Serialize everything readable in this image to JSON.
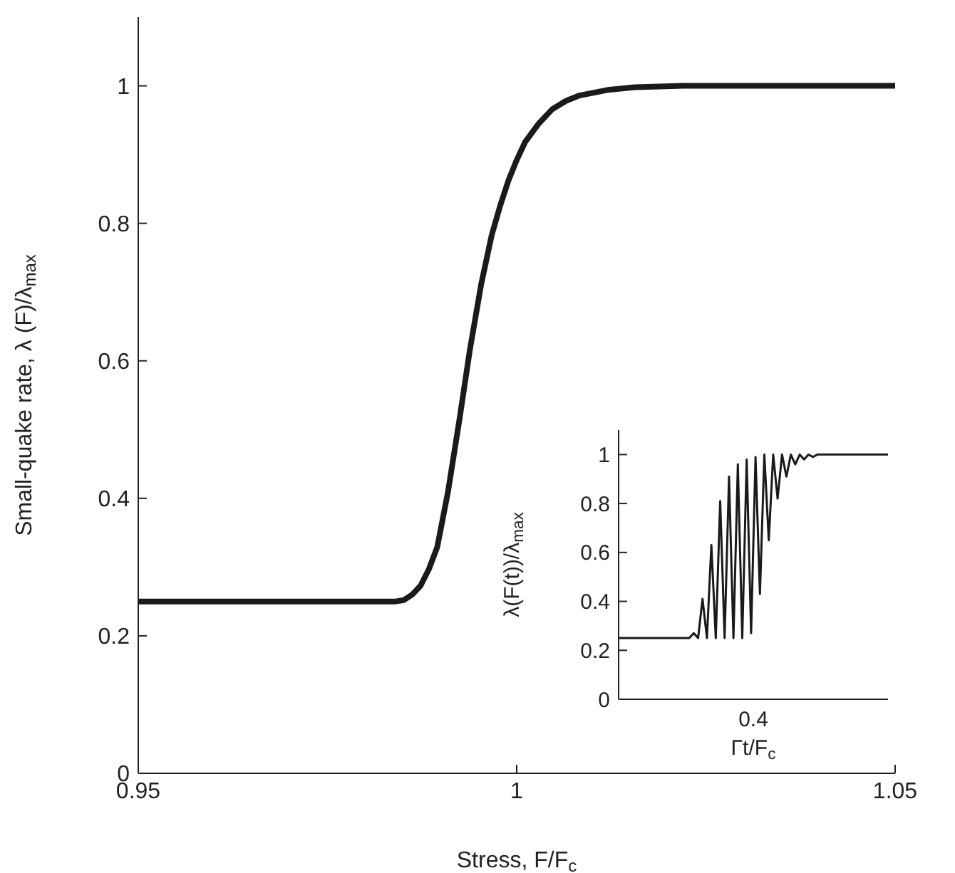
{
  "chart_data": [
    {
      "type": "line",
      "xlabel": "Stress, F/F$_{c}$",
      "ylabel": "Small-quake rate, λ (F)/λ$_{max}$",
      "xlim": [
        0.95,
        1.05
      ],
      "xticks": [
        0.95,
        1,
        1.05
      ],
      "ylim": [
        0,
        1.1
      ],
      "yticks": [
        0,
        0.2,
        0.4,
        0.6,
        0.8,
        1
      ],
      "marker": "none",
      "line_style": "solid",
      "series": [
        {
          "color": "#1a1a1a",
          "x": [
            0.95,
            0.97,
            0.984,
            0.9851,
            0.9862,
            0.9873,
            0.9884,
            0.9895,
            0.9909,
            0.9924,
            0.9938,
            0.9953,
            0.9967,
            0.9978,
            0.9989,
            1.0,
            1.0011,
            1.0029,
            1.0047,
            1.0065,
            1.0083,
            1.012,
            1.0156,
            1.022,
            1.03,
            1.05
          ],
          "values": [
            0.25,
            0.25,
            0.25,
            0.252,
            0.26,
            0.273,
            0.297,
            0.329,
            0.408,
            0.512,
            0.615,
            0.711,
            0.783,
            0.825,
            0.862,
            0.892,
            0.918,
            0.945,
            0.966,
            0.978,
            0.986,
            0.994,
            0.998,
            1,
            1,
            1
          ]
        }
      ]
    },
    {
      "type": "line",
      "xlabel": "Γt/F$_{c}$",
      "ylabel": "λ(F(t))/λ$_{max}$",
      "ylim": [
        0,
        1.1
      ],
      "yticks": [
        0,
        0.2,
        0.4,
        0.6,
        0.8,
        1
      ],
      "marker": "none",
      "line_style": "solid",
      "annotations": [
        "0.4"
      ],
      "categories": [
        null,
        null,
        null,
        null,
        null,
        null,
        null,
        null,
        null,
        null,
        null,
        null,
        null,
        null,
        null,
        null,
        null,
        null,
        null,
        null,
        null,
        null,
        null,
        null,
        null,
        null,
        null,
        null,
        null,
        null,
        null,
        null,
        null,
        null,
        null,
        null,
        null,
        null,
        null,
        null,
        null,
        null,
        null,
        null,
        null,
        null,
        null,
        null,
        null,
        null,
        null,
        null,
        null,
        null,
        null,
        null,
        null,
        null,
        null,
        null,
        null,
        null
      ],
      "series": [
        {
          "color": "#1a1a1a",
          "values": [
            0.25,
            0.25,
            0.25,
            0.25,
            0.25,
            0.25,
            0.25,
            0.25,
            0.25,
            0.25,
            0.25,
            0.25,
            0.25,
            0.25,
            0.25,
            0.25,
            0.25,
            0.27,
            0.25,
            0.41,
            0.25,
            0.63,
            0.25,
            0.81,
            0.25,
            0.91,
            0.25,
            0.96,
            0.25,
            0.98,
            0.27,
            0.99,
            0.43,
            1,
            0.65,
            1,
            0.82,
            1,
            0.91,
            1,
            0.96,
            1,
            0.98,
            1,
            0.99,
            1,
            1,
            1,
            1,
            1,
            1,
            1,
            1,
            1,
            1,
            1,
            1,
            1,
            1,
            1,
            1,
            1
          ]
        }
      ]
    }
  ]
}
